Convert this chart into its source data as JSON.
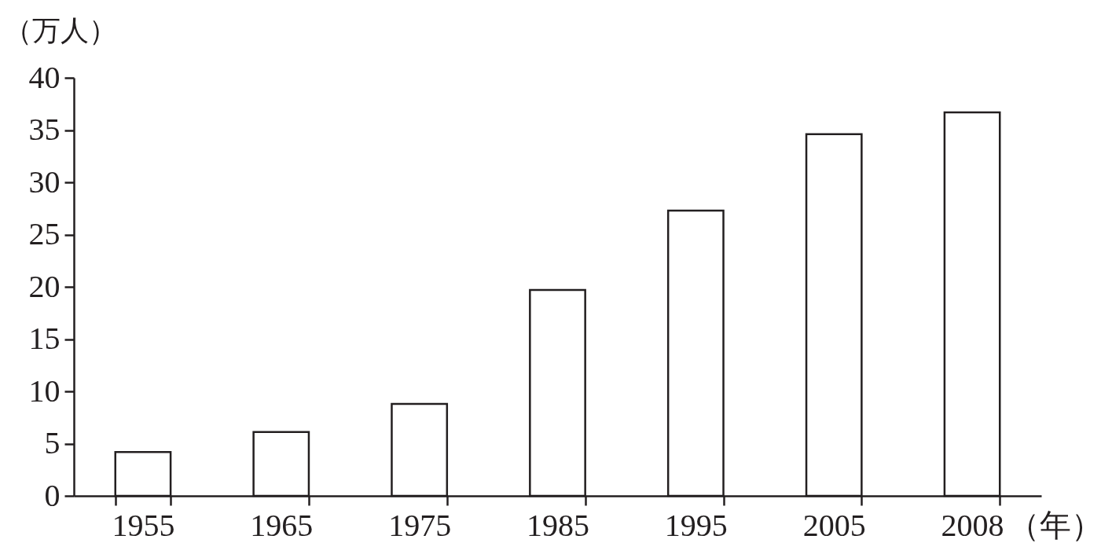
{
  "chart_data": {
    "type": "bar",
    "xlabel": "（年）",
    "ylabel": "（万人）",
    "categories": [
      "1955",
      "1965",
      "1975",
      "1985",
      "1995",
      "2005",
      "2008"
    ],
    "values": [
      4.2,
      6.1,
      8.8,
      19.7,
      27.3,
      34.6,
      36.7
    ],
    "color": "#ffffff",
    "ylim": [
      0,
      40
    ],
    "yticks": [
      0,
      5,
      10,
      15,
      20,
      25,
      30,
      35,
      40
    ],
    "grid": false
  }
}
